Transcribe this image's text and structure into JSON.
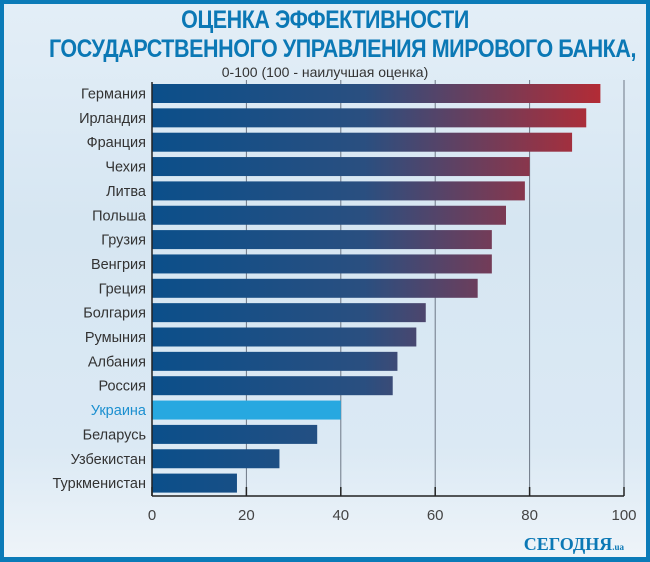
{
  "chart_data": {
    "type": "bar",
    "orientation": "horizontal",
    "title": "ОЦЕНКА ЭФФЕКТИВНОСТИ",
    "title_line2": "ГОСУДАРСТВЕННОГО УПРАВЛЕНИЯ МИРОВОГО БАНКА,",
    "subtitle": "0-100 (100 - наилучшая оценка)",
    "categories": [
      "Германия",
      "Ирландия",
      "Франция",
      "Чехия",
      "Литва",
      "Польша",
      "Грузия",
      "Венгрия",
      "Греция",
      "Болгария",
      "Румыния",
      "Албания",
      "Россия",
      "Украина",
      "Беларусь",
      "Узбекистан",
      "Туркменистан"
    ],
    "values": [
      95,
      92,
      89,
      80,
      79,
      75,
      72,
      72,
      69,
      58,
      56,
      52,
      51,
      40,
      35,
      27,
      18
    ],
    "highlight": "Украина",
    "xlim": [
      0,
      100
    ],
    "xticks": [
      "0",
      "20",
      "40",
      "60",
      "80",
      "100"
    ],
    "grid": true,
    "colors": {
      "low": "#0b4f8a",
      "high": "#c0282e",
      "highlight": "#27a8e0",
      "title": "#0b78b5"
    }
  },
  "logo": {
    "name": "СЕГОДНЯ",
    "suffix": ".ua"
  }
}
